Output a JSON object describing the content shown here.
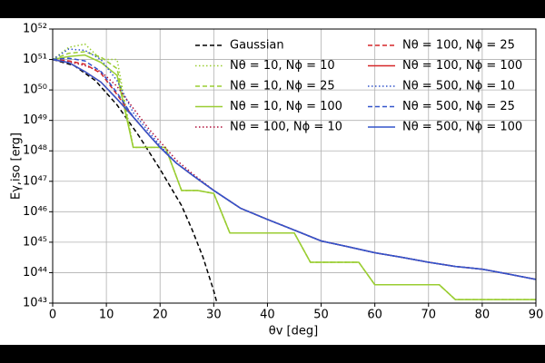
{
  "chart_data": {
    "type": "line",
    "xlabel": "θv [deg]",
    "ylabel": "Eγ,iso [erg]",
    "xlim": [
      0,
      90
    ],
    "ylim": [
      1e+43,
      1e+52
    ],
    "ylog": true,
    "grid": true,
    "legend": "upper right",
    "xticks": [
      0,
      10,
      20,
      30,
      40,
      50,
      60,
      70,
      80,
      90
    ],
    "yticks": [
      {
        "value": 1e+43,
        "label": "10⁴³"
      },
      {
        "value": 1e+44,
        "label": "10⁴⁴"
      },
      {
        "value": 1e+45,
        "label": "10⁴⁵"
      },
      {
        "value": 1e+46,
        "label": "10⁴⁶"
      },
      {
        "value": 1e+47,
        "label": "10⁴⁷"
      },
      {
        "value": 1e+48,
        "label": "10⁴⁸"
      },
      {
        "value": 1e+49,
        "label": "10⁴⁹"
      },
      {
        "value": 1e+50,
        "label": "10⁵⁰"
      },
      {
        "value": 1e+51,
        "label": "10⁵¹"
      },
      {
        "value": 1e+52,
        "label": "10⁵²"
      }
    ],
    "series": [
      {
        "name": "Gaussian",
        "color": "#000000",
        "style": "dashed",
        "x": [
          0,
          4,
          8,
          12,
          16,
          20,
          22,
          24,
          26,
          28,
          30,
          30.6
        ],
        "values": [
          1e+51,
          6.3e+50,
          2e+50,
          3.2e+49,
          3.2e+48,
          2.5e+47,
          6.3e+46,
          1.6e+46,
          2.5e+45,
          3.2e+44,
          2.5e+43,
          1e+43
        ]
      },
      {
        "name": "Nθ = 10,  Nϕ = 10",
        "color": "#9acd32",
        "style": "dotted",
        "x": [
          0,
          3,
          6,
          9,
          12,
          15,
          21,
          24,
          27,
          30,
          33,
          42,
          45,
          48,
          57,
          60,
          72,
          75,
          90
        ],
        "values": [
          1e+51,
          2.5e+51,
          3.2e+51,
          1e+51,
          1e+51,
          1.3e+48,
          1.3e+48,
          5e+46,
          5e+46,
          4e+46,
          2e+45,
          2e+45,
          2e+45,
          2.2e+44,
          2.2e+44,
          4e+43,
          4e+43,
          1.3e+43,
          1.3e+43
        ]
      },
      {
        "name": "Nθ = 10,  Nϕ = 25",
        "color": "#9acd32",
        "style": "dashed",
        "x": [
          0,
          3,
          6,
          9,
          12,
          15,
          21,
          24,
          27,
          30,
          33,
          42,
          45,
          48,
          57,
          60,
          72,
          75,
          90
        ],
        "values": [
          1e+51,
          1.6e+51,
          1.8e+51,
          1.2e+51,
          5e+50,
          1.3e+48,
          1.3e+48,
          5e+46,
          5e+46,
          4e+46,
          2e+45,
          2e+45,
          2e+45,
          2.2e+44,
          2.2e+44,
          4e+43,
          4e+43,
          1.3e+43,
          1.3e+43
        ]
      },
      {
        "name": "Nθ = 10,  Nϕ = 100",
        "color": "#9acd32",
        "style": "solid",
        "x": [
          0,
          3,
          6,
          9,
          12,
          15,
          21,
          24,
          27,
          30,
          33,
          42,
          45,
          48,
          57,
          60,
          72,
          75,
          90
        ],
        "values": [
          1e+51,
          1.25e+51,
          1.4e+51,
          8e+50,
          3e+50,
          1.3e+48,
          1.3e+48,
          5e+46,
          5e+46,
          4e+46,
          2e+45,
          2e+45,
          2e+45,
          2.2e+44,
          2.2e+44,
          4e+43,
          4e+43,
          1.3e+43,
          1.3e+43
        ]
      },
      {
        "name": "Nθ = 100,  Nϕ = 10",
        "color": "#b0103a",
        "style": "dotted",
        "x": [
          0,
          3,
          6,
          9,
          12,
          15,
          18,
          20,
          23,
          26,
          30,
          35,
          40,
          45,
          50,
          55,
          60,
          65,
          70,
          75,
          80,
          85,
          90
        ],
        "values": [
          1e+51,
          8.5e+50,
          6.3e+50,
          4e+50,
          1.3e+50,
          2.5e+49,
          5e+48,
          2e+48,
          5e+47,
          1.8e+47,
          5e+46,
          1.3e+46,
          5.6e+45,
          2.5e+45,
          1.1e+45,
          7.1e+44,
          4.5e+44,
          3.2e+44,
          2.2e+44,
          1.6e+44,
          1.3e+44,
          8.9e+43,
          6e+43
        ]
      },
      {
        "name": "Nθ = 100,  Nϕ = 25",
        "color": "#d62728",
        "style": "dashed",
        "x": [
          0,
          3,
          6,
          9,
          12,
          15,
          18,
          20,
          23,
          26,
          30,
          35,
          40,
          45,
          50,
          55,
          60,
          65,
          70,
          75,
          80,
          85,
          90
        ],
        "values": [
          1e+51,
          9e+50,
          7e+50,
          3.5e+50,
          7e+49,
          1.3e+49,
          3.2e+48,
          1.3e+48,
          4e+47,
          1.6e+47,
          5e+46,
          1.3e+46,
          5.6e+45,
          2.5e+45,
          1.1e+45,
          7.1e+44,
          4.5e+44,
          3.2e+44,
          2.2e+44,
          1.6e+44,
          1.3e+44,
          8.9e+43,
          6e+43
        ]
      },
      {
        "name": "Nθ = 100,  Nϕ = 100",
        "color": "#d62728",
        "style": "solid",
        "x": [
          0,
          3,
          6,
          9,
          12,
          15,
          18,
          20,
          23,
          26,
          30,
          35,
          40,
          45,
          50,
          55,
          60,
          65,
          70,
          75,
          80,
          85,
          90
        ],
        "values": [
          1e+51,
          7.9e+50,
          4e+50,
          1.8e+50,
          5e+49,
          1.3e+49,
          3.2e+48,
          1.3e+48,
          4e+47,
          1.6e+47,
          5e+46,
          1.3e+46,
          5.6e+45,
          2.5e+45,
          1.1e+45,
          7.1e+44,
          4.5e+44,
          3.2e+44,
          2.2e+44,
          1.6e+44,
          1.3e+44,
          8.9e+43,
          6e+43
        ]
      },
      {
        "name": "Nθ = 500,  Nϕ = 10",
        "color": "#3355cc",
        "style": "dotted",
        "x": [
          0,
          3,
          6,
          9,
          12,
          15,
          18,
          20,
          23,
          26,
          30,
          35,
          40,
          45,
          50,
          55,
          60,
          65,
          70,
          75,
          80,
          85,
          90
        ],
        "values": [
          1e+51,
          2.2e+51,
          2e+51,
          1e+51,
          2e+50,
          1.8e+49,
          4e+48,
          1.5e+48,
          4e+47,
          1.6e+47,
          5e+46,
          1.3e+46,
          5.6e+45,
          2.5e+45,
          1.1e+45,
          7.1e+44,
          4.5e+44,
          3.2e+44,
          2.2e+44,
          1.6e+44,
          1.3e+44,
          8.9e+43,
          6e+43
        ]
      },
      {
        "name": "Nθ = 500,  Nϕ = 25",
        "color": "#3355cc",
        "style": "dashed",
        "x": [
          0,
          3,
          6,
          9,
          12,
          15,
          18,
          20,
          23,
          26,
          30,
          35,
          40,
          45,
          50,
          55,
          60,
          65,
          70,
          75,
          80,
          85,
          90
        ],
        "values": [
          1e+51,
          1.1e+51,
          9e+50,
          4e+50,
          8e+49,
          1.3e+49,
          3.2e+48,
          1.3e+48,
          4e+47,
          1.6e+47,
          5e+46,
          1.3e+46,
          5.6e+45,
          2.5e+45,
          1.1e+45,
          7.1e+44,
          4.5e+44,
          3.2e+44,
          2.2e+44,
          1.6e+44,
          1.3e+44,
          8.9e+43,
          6e+43
        ]
      },
      {
        "name": "Nθ = 500,  Nϕ = 100",
        "color": "#3355cc",
        "style": "solid",
        "x": [
          0,
          3,
          6,
          9,
          12,
          15,
          18,
          20,
          23,
          26,
          30,
          35,
          40,
          45,
          50,
          55,
          60,
          65,
          70,
          75,
          80,
          85,
          90
        ],
        "values": [
          1e+51,
          7.9e+50,
          4e+50,
          1.8e+50,
          5e+49,
          1.3e+49,
          3.2e+48,
          1.3e+48,
          4e+47,
          1.6e+47,
          5e+46,
          1.3e+46,
          5.6e+45,
          2.5e+45,
          1.1e+45,
          7.1e+44,
          4.5e+44,
          3.2e+44,
          2.2e+44,
          1.6e+44,
          1.3e+44,
          8.9e+43,
          6e+43
        ]
      }
    ]
  }
}
